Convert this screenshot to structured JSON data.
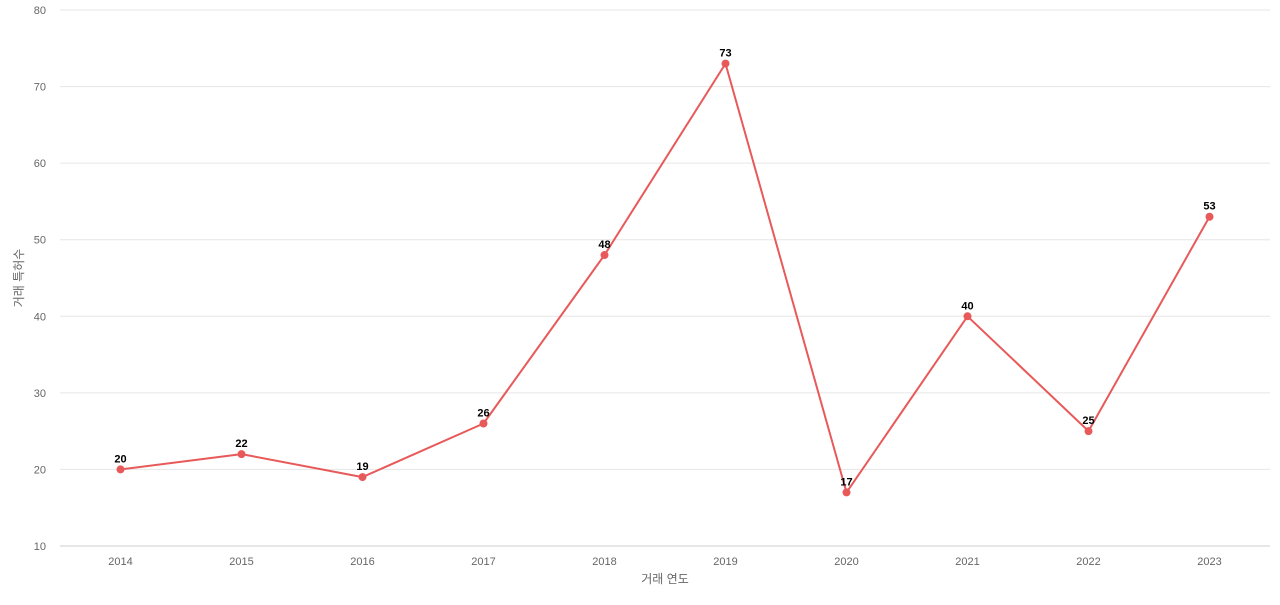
{
  "chart_data": {
    "type": "line",
    "title": "",
    "xlabel": "거래 연도",
    "ylabel": "거래 특허수",
    "categories": [
      "2014",
      "2015",
      "2016",
      "2017",
      "2018",
      "2019",
      "2020",
      "2021",
      "2022",
      "2023"
    ],
    "series": [
      {
        "values": [
          20,
          22,
          19,
          26,
          48,
          73,
          17,
          40,
          25,
          53
        ],
        "color": "#e8595a"
      }
    ],
    "ylim": [
      10,
      80
    ],
    "yticks": [
      "10",
      "20",
      "30",
      "40",
      "50",
      "60",
      "70",
      "80"
    ],
    "data_labels": true,
    "grid": true,
    "legend": "none"
  }
}
